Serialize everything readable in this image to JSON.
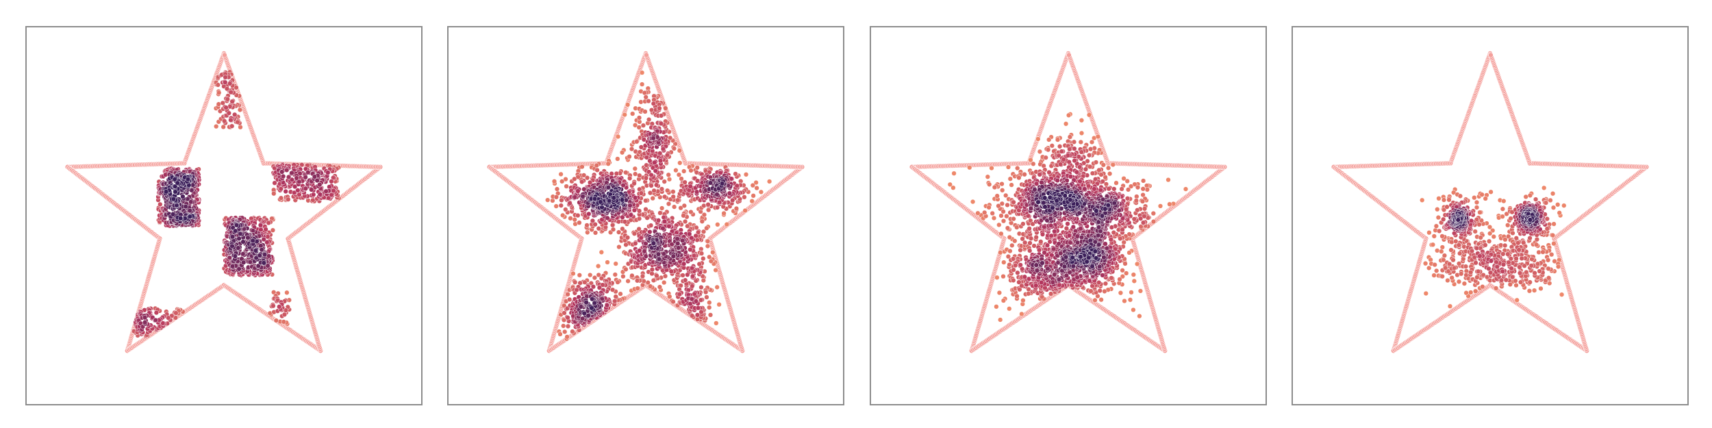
{
  "chart_data": [
    {
      "type": "scatter",
      "title": "",
      "xlabel": "",
      "ylabel": "",
      "grid": false,
      "axes_visible": false,
      "boundary": {
        "shape": "five-pointed star",
        "marker_color": "#f4a09c"
      },
      "points": {
        "colormap": "magma",
        "dense_color": "#3b1f5a",
        "sparse_color": "#f08a6a"
      },
      "clusters": [
        {
          "region": "top-point",
          "x": [
            -0.05,
            0.1
          ],
          "y": [
            0.55,
            0.9
          ],
          "n": 90
        },
        {
          "region": "upper-left-block",
          "x": [
            -0.4,
            -0.15
          ],
          "y": [
            -0.05,
            0.3
          ],
          "n": 420
        },
        {
          "region": "center-block",
          "x": [
            0.0,
            0.3
          ],
          "y": [
            -0.35,
            0.0
          ],
          "n": 420
        },
        {
          "region": "right-arm-block",
          "x": [
            0.3,
            0.7
          ],
          "y": [
            0.1,
            0.33
          ],
          "n": 260
        },
        {
          "region": "left-foot-block",
          "x": [
            -0.55,
            -0.25
          ],
          "y": [
            -0.72,
            -0.55
          ],
          "n": 110
        },
        {
          "region": "right-foot-edge",
          "x": [
            0.28,
            0.4
          ],
          "y": [
            -0.75,
            -0.45
          ],
          "n": 40
        }
      ]
    },
    {
      "type": "scatter",
      "title": "",
      "xlabel": "",
      "ylabel": "",
      "grid": false,
      "axes_visible": false,
      "boundary": {
        "shape": "five-pointed star",
        "marker_color": "#f4a09c"
      },
      "points": {
        "colormap": "magma",
        "dense_color": "#3b1f5a",
        "sparse_color": "#f08a6a"
      },
      "clusters": [
        {
          "region": "top-point",
          "cx": 0.05,
          "cy": 0.45,
          "sx": 0.07,
          "sy": 0.18,
          "n": 260
        },
        {
          "region": "upper-left",
          "cx": -0.25,
          "cy": 0.12,
          "sx": 0.13,
          "sy": 0.09,
          "n": 520
        },
        {
          "region": "center",
          "cx": 0.12,
          "cy": -0.18,
          "sx": 0.13,
          "sy": 0.12,
          "n": 520
        },
        {
          "region": "right-arm",
          "cx": 0.42,
          "cy": 0.18,
          "sx": 0.12,
          "sy": 0.07,
          "n": 280
        },
        {
          "region": "left-foot",
          "cx": -0.33,
          "cy": -0.55,
          "sx": 0.14,
          "sy": 0.1,
          "n": 280
        },
        {
          "region": "right-foot",
          "cx": 0.28,
          "cy": -0.55,
          "sx": 0.07,
          "sy": 0.12,
          "n": 120
        }
      ]
    },
    {
      "type": "scatter",
      "title": "",
      "xlabel": "",
      "ylabel": "",
      "grid": false,
      "axes_visible": false,
      "boundary": {
        "shape": "five-pointed star",
        "marker_color": "#f4a09c"
      },
      "points": {
        "colormap": "magma",
        "dense_color": "#3b1f5a",
        "sparse_color": "#f08a6a"
      },
      "clusters": [
        {
          "region": "upper-left",
          "cx": -0.13,
          "cy": 0.1,
          "sx": 0.12,
          "sy": 0.09,
          "n": 520
        },
        {
          "region": "right",
          "cx": 0.22,
          "cy": 0.05,
          "sx": 0.13,
          "sy": 0.09,
          "n": 420
        },
        {
          "region": "center-low",
          "cx": 0.12,
          "cy": -0.25,
          "sx": 0.11,
          "sy": 0.1,
          "n": 460
        },
        {
          "region": "left-low",
          "cx": -0.15,
          "cy": -0.32,
          "sx": 0.12,
          "sy": 0.1,
          "n": 320
        },
        {
          "region": "top",
          "cx": 0.02,
          "cy": 0.35,
          "sx": 0.08,
          "sy": 0.1,
          "n": 140
        },
        {
          "region": "diffuse",
          "cx": 0.02,
          "cy": -0.05,
          "sx": 0.3,
          "sy": 0.3,
          "n": 320
        }
      ]
    },
    {
      "type": "scatter",
      "title": "",
      "xlabel": "",
      "ylabel": "",
      "grid": false,
      "axes_visible": false,
      "boundary": {
        "shape": "five-pointed star",
        "marker_color": "#f4a09c"
      },
      "points": {
        "colormap": "magma",
        "dense_color": "#3b1f5a",
        "sparse_color": "#f08a6a"
      },
      "clusters": [
        {
          "region": "left-eye",
          "cx": -0.19,
          "cy": 0.0,
          "sx": 0.045,
          "sy": 0.045,
          "n": 160
        },
        {
          "region": "right-eye",
          "cx": 0.24,
          "cy": 0.0,
          "sx": 0.05,
          "sy": 0.05,
          "n": 170
        },
        {
          "region": "left-eye-halo",
          "cx": -0.19,
          "cy": 0.0,
          "sx": 0.09,
          "sy": 0.09,
          "n": 90
        },
        {
          "region": "right-eye-halo",
          "cx": 0.24,
          "cy": 0.0,
          "sx": 0.1,
          "sy": 0.09,
          "n": 100
        },
        {
          "region": "lower-body",
          "cx": 0.05,
          "cy": -0.28,
          "sx": 0.2,
          "sy": 0.1,
          "n": 420
        }
      ]
    }
  ]
}
